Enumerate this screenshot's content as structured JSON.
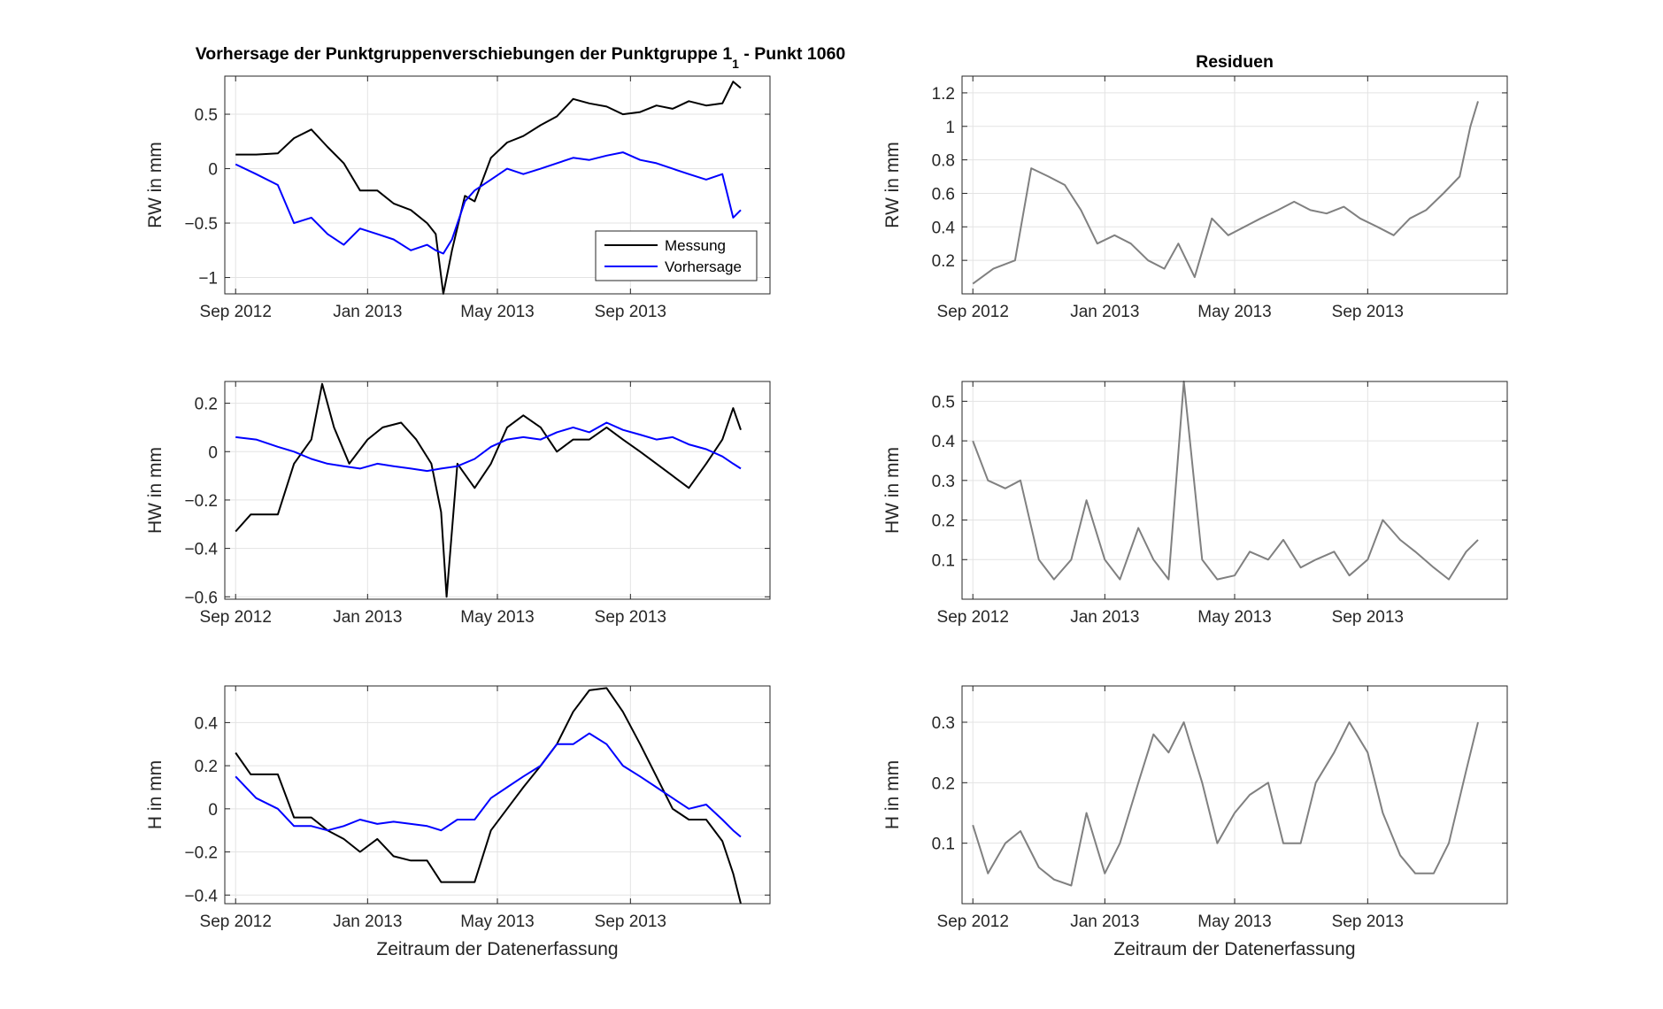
{
  "figure": {
    "title_main": "Vorhersage der Punktgruppenverschiebungen der Punktgruppe 1",
    "title_sub": "1",
    "title_tail": " - Punkt 1060",
    "colors": {
      "messung": "#000000",
      "vorhersage": "#0000ff",
      "residuen": "#808080"
    }
  },
  "chart_data": [
    {
      "id": "rw",
      "type": "line",
      "title": "",
      "xlabel": "",
      "ylabel": "RW in mm",
      "x_ticks": [
        "Sep 2012",
        "Jan 2013",
        "May 2013",
        "Sep 2013"
      ],
      "xlim": [
        "2012-08-22",
        "2014-01-08"
      ],
      "ylim": [
        -1.15,
        0.85
      ],
      "y_ticks": [
        -1,
        -0.5,
        0,
        0.5
      ],
      "grid": true,
      "legend": {
        "placement": "bottom-right",
        "entries": [
          "Messung",
          "Vorhersage"
        ]
      },
      "series": [
        {
          "name": "Messung",
          "color": "#000000",
          "x": [
            "2012-09-01",
            "2012-09-20",
            "2012-10-10",
            "2012-10-25",
            "2012-11-10",
            "2012-11-25",
            "2012-12-10",
            "2012-12-25",
            "2013-01-10",
            "2013-01-25",
            "2013-02-10",
            "2013-02-25",
            "2013-03-05",
            "2013-03-12",
            "2013-03-20",
            "2013-04-01",
            "2013-04-10",
            "2013-04-25",
            "2013-05-10",
            "2013-05-25",
            "2013-06-10",
            "2013-06-25",
            "2013-07-10",
            "2013-07-25",
            "2013-08-10",
            "2013-08-25",
            "2013-09-10",
            "2013-09-25",
            "2013-10-10",
            "2013-10-25",
            "2013-11-10",
            "2013-11-25",
            "2013-12-05",
            "2013-12-12"
          ],
          "values": [
            0.13,
            0.13,
            0.14,
            0.28,
            0.36,
            0.2,
            0.05,
            -0.2,
            -0.2,
            -0.32,
            -0.38,
            -0.5,
            -0.6,
            -1.15,
            -0.75,
            -0.25,
            -0.3,
            0.1,
            0.24,
            0.3,
            0.4,
            0.48,
            0.64,
            0.6,
            0.57,
            0.5,
            0.52,
            0.58,
            0.55,
            0.62,
            0.58,
            0.6,
            0.8,
            0.74
          ]
        },
        {
          "name": "Vorhersage",
          "color": "#0000ff",
          "x": [
            "2012-09-01",
            "2012-09-20",
            "2012-10-10",
            "2012-10-25",
            "2012-11-10",
            "2012-11-25",
            "2012-12-10",
            "2012-12-25",
            "2013-01-10",
            "2013-01-25",
            "2013-02-10",
            "2013-02-25",
            "2013-03-05",
            "2013-03-12",
            "2013-03-20",
            "2013-04-01",
            "2013-04-10",
            "2013-04-25",
            "2013-05-10",
            "2013-05-25",
            "2013-06-10",
            "2013-06-25",
            "2013-07-10",
            "2013-07-25",
            "2013-08-10",
            "2013-08-25",
            "2013-09-10",
            "2013-09-25",
            "2013-10-10",
            "2013-10-25",
            "2013-11-10",
            "2013-11-25",
            "2013-12-05",
            "2013-12-12"
          ],
          "values": [
            0.04,
            -0.05,
            -0.15,
            -0.5,
            -0.45,
            -0.6,
            -0.7,
            -0.55,
            -0.6,
            -0.65,
            -0.75,
            -0.7,
            -0.75,
            -0.78,
            -0.65,
            -0.3,
            -0.2,
            -0.1,
            0.0,
            -0.05,
            0.0,
            0.05,
            0.1,
            0.08,
            0.12,
            0.15,
            0.08,
            0.05,
            0.0,
            -0.05,
            -0.1,
            -0.05,
            -0.45,
            -0.38
          ]
        }
      ]
    },
    {
      "id": "rw-res",
      "type": "line",
      "title": "Residuen",
      "xlabel": "",
      "ylabel": "RW in mm",
      "x_ticks": [
        "Sep 2012",
        "Jan 2013",
        "May 2013",
        "Sep 2013"
      ],
      "xlim": [
        "2012-08-22",
        "2014-01-08"
      ],
      "ylim": [
        0,
        1.3
      ],
      "y_ticks": [
        0.2,
        0.4,
        0.6,
        0.8,
        1,
        1.2
      ],
      "grid": true,
      "series": [
        {
          "color": "#808080",
          "x": [
            "2012-09-01",
            "2012-09-20",
            "2012-10-10",
            "2012-10-25",
            "2012-11-10",
            "2012-11-25",
            "2012-12-10",
            "2012-12-25",
            "2013-01-10",
            "2013-01-25",
            "2013-02-10",
            "2013-02-25",
            "2013-03-10",
            "2013-03-25",
            "2013-04-10",
            "2013-04-25",
            "2013-05-10",
            "2013-05-25",
            "2013-06-10",
            "2013-06-25",
            "2013-07-10",
            "2013-07-25",
            "2013-08-10",
            "2013-08-25",
            "2013-09-10",
            "2013-09-25",
            "2013-10-10",
            "2013-10-25",
            "2013-11-10",
            "2013-11-25",
            "2013-12-05",
            "2013-12-12"
          ],
          "values": [
            0.06,
            0.15,
            0.2,
            0.75,
            0.7,
            0.65,
            0.5,
            0.3,
            0.35,
            0.3,
            0.2,
            0.15,
            0.3,
            0.1,
            0.45,
            0.35,
            0.4,
            0.45,
            0.5,
            0.55,
            0.5,
            0.48,
            0.52,
            0.45,
            0.4,
            0.35,
            0.45,
            0.5,
            0.6,
            0.7,
            1.0,
            1.15
          ]
        }
      ]
    },
    {
      "id": "hw",
      "type": "line",
      "title": "",
      "xlabel": "",
      "ylabel": "HW in mm",
      "x_ticks": [
        "Sep 2012",
        "Jan 2013",
        "May 2013",
        "Sep 2013"
      ],
      "xlim": [
        "2012-08-22",
        "2014-01-08"
      ],
      "ylim": [
        -0.61,
        0.29
      ],
      "y_ticks": [
        -0.6,
        -0.4,
        -0.2,
        0,
        0.2
      ],
      "grid": true,
      "series": [
        {
          "name": "Messung",
          "color": "#000000",
          "x": [
            "2012-09-01",
            "2012-09-15",
            "2012-10-10",
            "2012-10-25",
            "2012-11-10",
            "2012-11-20",
            "2012-12-01",
            "2012-12-15",
            "2013-01-01",
            "2013-01-15",
            "2013-02-01",
            "2013-02-15",
            "2013-03-01",
            "2013-03-10",
            "2013-03-15",
            "2013-03-25",
            "2013-04-10",
            "2013-04-25",
            "2013-05-10",
            "2013-05-25",
            "2013-06-10",
            "2013-06-25",
            "2013-07-10",
            "2013-07-25",
            "2013-08-10",
            "2013-08-25",
            "2013-09-10",
            "2013-09-25",
            "2013-10-10",
            "2013-10-25",
            "2013-11-10",
            "2013-11-25",
            "2013-12-05",
            "2013-12-12"
          ],
          "values": [
            -0.33,
            -0.26,
            -0.26,
            -0.05,
            0.05,
            0.28,
            0.1,
            -0.05,
            0.05,
            0.1,
            0.12,
            0.05,
            -0.05,
            -0.25,
            -0.6,
            -0.05,
            -0.15,
            -0.05,
            0.1,
            0.15,
            0.1,
            0.0,
            0.05,
            0.05,
            0.1,
            0.05,
            0.0,
            -0.05,
            -0.1,
            -0.15,
            -0.05,
            0.05,
            0.18,
            0.09
          ]
        },
        {
          "name": "Vorhersage",
          "color": "#0000ff",
          "x": [
            "2012-09-01",
            "2012-09-20",
            "2012-10-10",
            "2012-10-25",
            "2012-11-10",
            "2012-11-25",
            "2012-12-10",
            "2012-12-25",
            "2013-01-10",
            "2013-01-25",
            "2013-02-10",
            "2013-02-25",
            "2013-03-10",
            "2013-03-25",
            "2013-04-10",
            "2013-04-25",
            "2013-05-10",
            "2013-05-25",
            "2013-06-10",
            "2013-06-25",
            "2013-07-10",
            "2013-07-25",
            "2013-08-10",
            "2013-08-25",
            "2013-09-10",
            "2013-09-25",
            "2013-10-10",
            "2013-10-25",
            "2013-11-10",
            "2013-11-25",
            "2013-12-05",
            "2013-12-12"
          ],
          "values": [
            0.06,
            0.05,
            0.02,
            0.0,
            -0.03,
            -0.05,
            -0.06,
            -0.07,
            -0.05,
            -0.06,
            -0.07,
            -0.08,
            -0.07,
            -0.06,
            -0.03,
            0.02,
            0.05,
            0.06,
            0.05,
            0.08,
            0.1,
            0.08,
            0.12,
            0.09,
            0.07,
            0.05,
            0.06,
            0.03,
            0.01,
            -0.02,
            -0.05,
            -0.07
          ]
        }
      ]
    },
    {
      "id": "hw-res",
      "type": "line",
      "title": "",
      "xlabel": "",
      "ylabel": "HW in mm",
      "x_ticks": [
        "Sep 2012",
        "Jan 2013",
        "May 2013",
        "Sep 2013"
      ],
      "xlim": [
        "2012-08-22",
        "2014-01-08"
      ],
      "ylim": [
        0,
        0.55
      ],
      "y_ticks": [
        0.1,
        0.2,
        0.3,
        0.4,
        0.5
      ],
      "grid": true,
      "series": [
        {
          "color": "#808080",
          "x": [
            "2012-09-01",
            "2012-09-15",
            "2012-10-01",
            "2012-10-15",
            "2012-11-01",
            "2012-11-15",
            "2012-12-01",
            "2012-12-15",
            "2013-01-01",
            "2013-01-15",
            "2013-02-01",
            "2013-02-15",
            "2013-03-01",
            "2013-03-15",
            "2013-04-01",
            "2013-04-15",
            "2013-05-01",
            "2013-05-15",
            "2013-06-01",
            "2013-06-15",
            "2013-07-01",
            "2013-07-15",
            "2013-08-01",
            "2013-08-15",
            "2013-09-01",
            "2013-09-15",
            "2013-10-01",
            "2013-10-15",
            "2013-11-01",
            "2013-11-15",
            "2013-12-01",
            "2013-12-12"
          ],
          "values": [
            0.4,
            0.3,
            0.28,
            0.3,
            0.1,
            0.05,
            0.1,
            0.25,
            0.1,
            0.05,
            0.18,
            0.1,
            0.05,
            0.55,
            0.1,
            0.05,
            0.06,
            0.12,
            0.1,
            0.15,
            0.08,
            0.1,
            0.12,
            0.06,
            0.1,
            0.2,
            0.15,
            0.12,
            0.08,
            0.05,
            0.12,
            0.15
          ]
        }
      ]
    },
    {
      "id": "h",
      "type": "line",
      "title": "",
      "xlabel": "Zeitraum der Datenerfassung",
      "ylabel": "H in mm",
      "x_ticks": [
        "Sep 2012",
        "Jan 2013",
        "May 2013",
        "Sep 2013"
      ],
      "xlim": [
        "2012-08-22",
        "2014-01-08"
      ],
      "ylim": [
        -0.44,
        0.57
      ],
      "y_ticks": [
        -0.4,
        -0.2,
        0,
        0.2,
        0.4
      ],
      "grid": true,
      "series": [
        {
          "name": "Messung",
          "color": "#000000",
          "x": [
            "2012-09-01",
            "2012-09-15",
            "2012-10-10",
            "2012-10-25",
            "2012-11-10",
            "2012-11-25",
            "2012-12-10",
            "2012-12-25",
            "2013-01-10",
            "2013-01-25",
            "2013-02-10",
            "2013-02-25",
            "2013-03-10",
            "2013-03-25",
            "2013-04-10",
            "2013-04-25",
            "2013-05-10",
            "2013-05-25",
            "2013-06-10",
            "2013-06-25",
            "2013-07-10",
            "2013-07-25",
            "2013-08-10",
            "2013-08-25",
            "2013-09-10",
            "2013-09-25",
            "2013-10-10",
            "2013-10-25",
            "2013-11-10",
            "2013-11-25",
            "2013-12-05",
            "2013-12-12"
          ],
          "values": [
            0.26,
            0.16,
            0.16,
            -0.04,
            -0.04,
            -0.1,
            -0.14,
            -0.2,
            -0.14,
            -0.22,
            -0.24,
            -0.24,
            -0.34,
            -0.34,
            -0.34,
            -0.1,
            0.0,
            0.1,
            0.2,
            0.3,
            0.45,
            0.55,
            0.56,
            0.45,
            0.3,
            0.15,
            0.0,
            -0.05,
            -0.05,
            -0.15,
            -0.3,
            -0.44
          ]
        },
        {
          "name": "Vorhersage",
          "color": "#0000ff",
          "x": [
            "2012-09-01",
            "2012-09-20",
            "2012-10-10",
            "2012-10-25",
            "2012-11-10",
            "2012-11-25",
            "2012-12-10",
            "2012-12-25",
            "2013-01-10",
            "2013-01-25",
            "2013-02-10",
            "2013-02-25",
            "2013-03-10",
            "2013-03-25",
            "2013-04-10",
            "2013-04-25",
            "2013-05-10",
            "2013-05-25",
            "2013-06-10",
            "2013-06-25",
            "2013-07-10",
            "2013-07-25",
            "2013-08-10",
            "2013-08-25",
            "2013-09-10",
            "2013-09-25",
            "2013-10-10",
            "2013-10-25",
            "2013-11-10",
            "2013-11-25",
            "2013-12-05",
            "2013-12-12"
          ],
          "values": [
            0.15,
            0.05,
            0.0,
            -0.08,
            -0.08,
            -0.1,
            -0.08,
            -0.05,
            -0.07,
            -0.06,
            -0.07,
            -0.08,
            -0.1,
            -0.05,
            -0.05,
            0.05,
            0.1,
            0.15,
            0.2,
            0.3,
            0.3,
            0.35,
            0.3,
            0.2,
            0.15,
            0.1,
            0.05,
            0.0,
            0.02,
            -0.05,
            -0.1,
            -0.13
          ]
        }
      ]
    },
    {
      "id": "h-res",
      "type": "line",
      "title": "",
      "xlabel": "Zeitraum der Datenerfassung",
      "ylabel": "H in mm",
      "x_ticks": [
        "Sep 2012",
        "Jan 2013",
        "May 2013",
        "Sep 2013"
      ],
      "xlim": [
        "2012-08-22",
        "2014-01-08"
      ],
      "ylim": [
        0,
        0.36
      ],
      "y_ticks": [
        0.1,
        0.2,
        0.3
      ],
      "grid": true,
      "series": [
        {
          "color": "#808080",
          "x": [
            "2012-09-01",
            "2012-09-15",
            "2012-10-01",
            "2012-10-15",
            "2012-11-01",
            "2012-11-15",
            "2012-12-01",
            "2012-12-15",
            "2013-01-01",
            "2013-01-15",
            "2013-02-01",
            "2013-02-15",
            "2013-03-01",
            "2013-03-15",
            "2013-04-01",
            "2013-04-15",
            "2013-05-01",
            "2013-05-15",
            "2013-06-01",
            "2013-06-15",
            "2013-07-01",
            "2013-07-15",
            "2013-08-01",
            "2013-08-15",
            "2013-09-01",
            "2013-09-15",
            "2013-10-01",
            "2013-10-15",
            "2013-11-01",
            "2013-11-15",
            "2013-12-01",
            "2013-12-12"
          ],
          "values": [
            0.13,
            0.05,
            0.1,
            0.12,
            0.06,
            0.04,
            0.03,
            0.15,
            0.05,
            0.1,
            0.2,
            0.28,
            0.25,
            0.3,
            0.2,
            0.1,
            0.15,
            0.18,
            0.2,
            0.1,
            0.1,
            0.2,
            0.25,
            0.3,
            0.25,
            0.15,
            0.08,
            0.05,
            0.05,
            0.1,
            0.22,
            0.3
          ]
        }
      ]
    }
  ]
}
